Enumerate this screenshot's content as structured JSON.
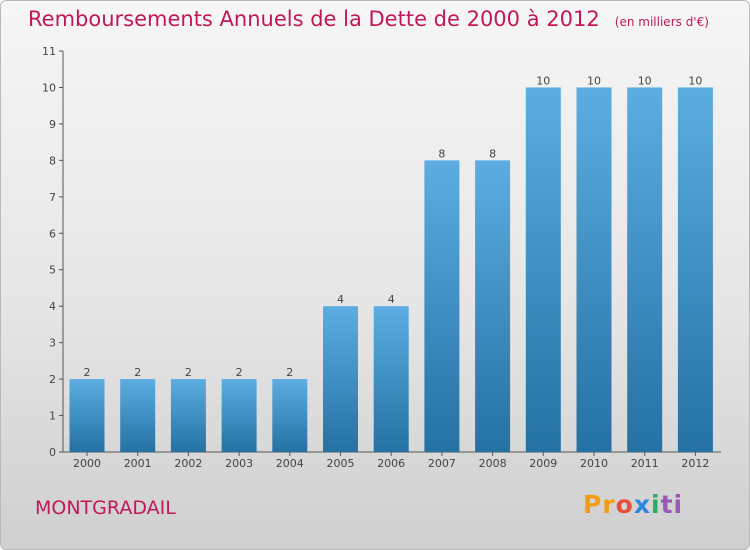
{
  "header": {
    "title": "Remboursements Annuels de la Dette de 2000 à 2012",
    "subtitle": "(en milliers d'€)"
  },
  "footer": {
    "place": "MONTGRADAIL",
    "logo": [
      "Pr",
      "o",
      "x",
      "i",
      "ti"
    ]
  },
  "colors": {
    "bar_top": "#5dade2",
    "bar_bottom": "#2471a3",
    "title": "#c2185b"
  },
  "chart_data": {
    "type": "bar",
    "categories": [
      "2000",
      "2001",
      "2002",
      "2003",
      "2004",
      "2005",
      "2006",
      "2007",
      "2008",
      "2009",
      "2010",
      "2011",
      "2012"
    ],
    "values": [
      2,
      2,
      2,
      2,
      2,
      4,
      4,
      8,
      8,
      10,
      10,
      10,
      10
    ],
    "title": "Remboursements Annuels de la Dette de 2000 à 2012",
    "xlabel": "",
    "ylabel": "",
    "ylim": [
      0,
      11
    ],
    "yticks": [
      0,
      1,
      2,
      3,
      4,
      5,
      6,
      7,
      8,
      9,
      10,
      11
    ],
    "grid": false,
    "data_labels": true
  }
}
